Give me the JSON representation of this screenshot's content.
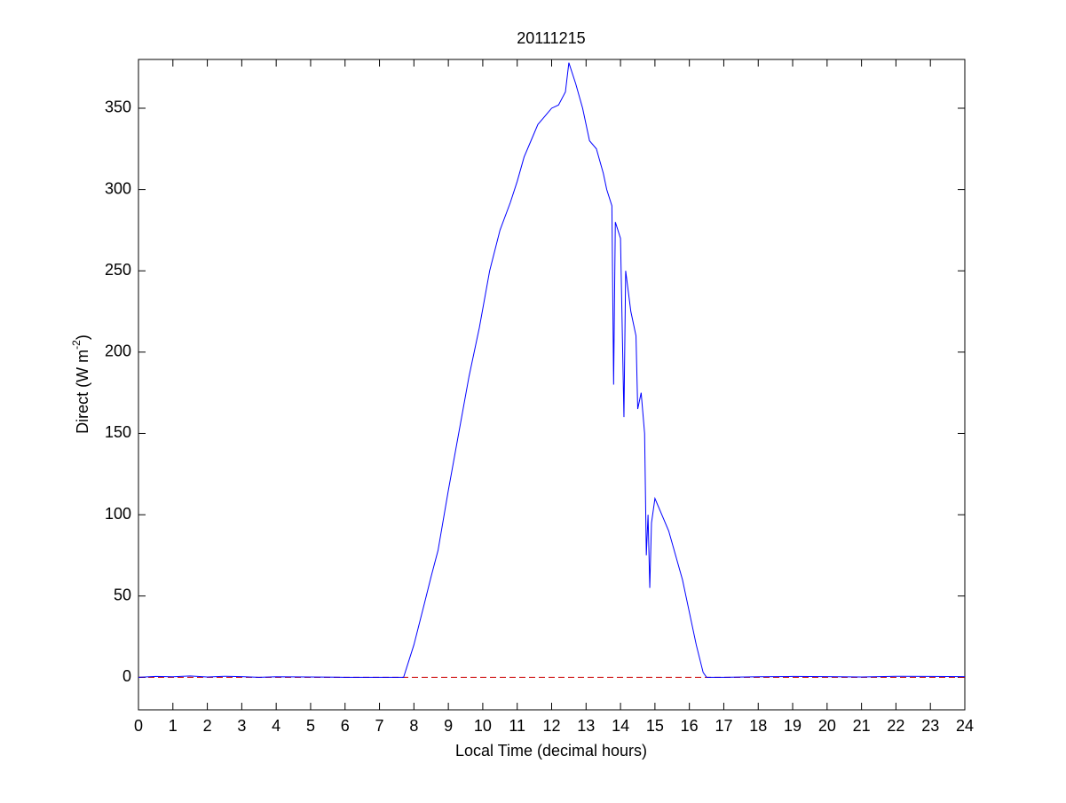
{
  "chart_data": {
    "type": "line",
    "title": "20111215",
    "xlabel": "Local Time (decimal hours)",
    "ylabel": {
      "text": "Direct (W m",
      "superscript": "-2",
      "suffix": ")"
    },
    "xlim": [
      0,
      24
    ],
    "xticks": [
      0,
      1,
      2,
      3,
      4,
      5,
      6,
      7,
      8,
      9,
      10,
      11,
      12,
      13,
      14,
      15,
      16,
      17,
      18,
      19,
      20,
      21,
      22,
      23,
      24
    ],
    "ylim": [
      -20,
      380
    ],
    "yticks": [
      0,
      50,
      100,
      150,
      200,
      250,
      300,
      350
    ],
    "grid": false,
    "x": [
      0,
      0.5,
      1,
      1.5,
      2,
      2.5,
      3,
      3.5,
      4,
      5,
      6,
      7,
      7.7,
      8,
      8.3,
      8.5,
      8.7,
      9,
      9.3,
      9.6,
      9.9,
      10.2,
      10.5,
      10.8,
      11,
      11.2,
      11.4,
      11.6,
      11.8,
      12,
      12.2,
      12.4,
      12.5,
      12.7,
      12.9,
      13.1,
      13.3,
      13.5,
      13.6,
      13.75,
      13.8,
      13.85,
      14,
      14.1,
      14.15,
      14.3,
      14.45,
      14.5,
      14.6,
      14.7,
      14.75,
      14.8,
      14.85,
      14.9,
      15,
      15.2,
      15.4,
      15.6,
      15.8,
      16,
      16.2,
      16.4,
      16.5,
      17,
      18,
      19,
      20,
      21,
      22,
      23,
      24
    ],
    "series": [
      {
        "color": "#0000ff",
        "values": [
          0,
          0.5,
          0.3,
          0.8,
          0.2,
          0.6,
          0.4,
          0,
          0.3,
          0.2,
          0,
          0,
          0,
          20,
          45,
          62,
          78,
          115,
          150,
          185,
          215,
          250,
          275,
          292,
          305,
          320,
          330,
          340,
          345,
          350,
          352,
          360,
          378,
          365,
          350,
          330,
          325,
          310,
          300,
          290,
          180,
          280,
          270,
          160,
          250,
          225,
          210,
          165,
          175,
          150,
          75,
          100,
          55,
          95,
          110,
          100,
          90,
          75,
          60,
          40,
          20,
          3,
          0,
          0,
          0.3,
          0.5,
          0.4,
          0.2,
          0.6,
          0.5,
          0.4
        ]
      }
    ],
    "reference_lines": [
      {
        "y": 0,
        "color": "#cc0000",
        "dashed": true
      }
    ]
  }
}
